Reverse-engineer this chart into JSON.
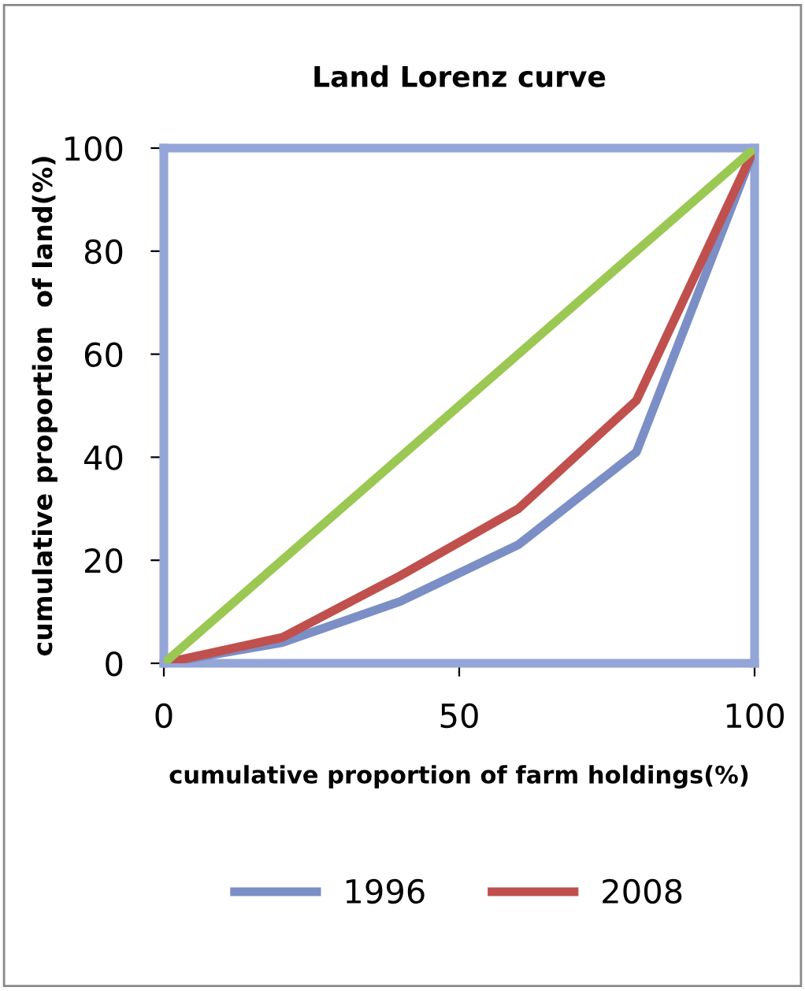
{
  "chart_data": {
    "type": "line",
    "title": "Land Lorenz curve",
    "xlabel": "cumulative proportion of farm holdings(%)",
    "ylabel": "cumulative proportion  of land(%)",
    "x": [
      0,
      20,
      40,
      60,
      80,
      100
    ],
    "series": [
      {
        "name": "1996",
        "color": "#7b8fc6",
        "values": [
          0,
          4,
          12,
          23,
          41,
          100
        ]
      },
      {
        "name": "2008",
        "color": "#c0504d",
        "values": [
          0,
          5,
          17,
          30,
          51,
          100
        ]
      },
      {
        "color": "#9bc853",
        "x": [
          0,
          100
        ],
        "values": [
          0,
          100
        ]
      }
    ],
    "xlim": [
      0,
      100
    ],
    "ylim": [
      0,
      100
    ],
    "xticks": [
      0,
      50,
      100
    ],
    "yticks": [
      0,
      20,
      40,
      60,
      80,
      100
    ],
    "grid": false,
    "legend": "bottom",
    "marker": "none",
    "line_style": "solid"
  }
}
